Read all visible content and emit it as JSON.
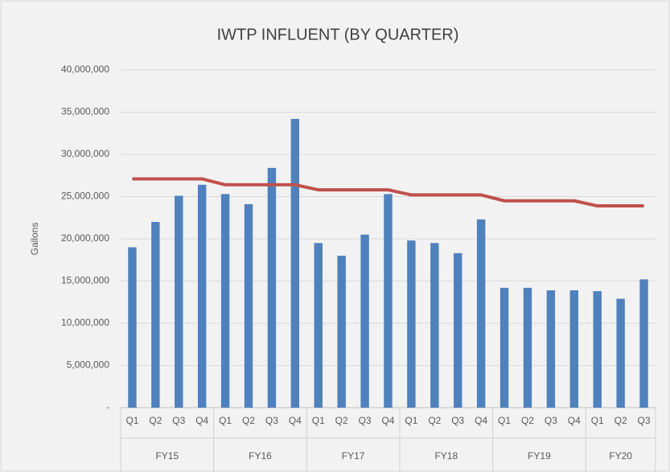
{
  "chart_data": {
    "type": "bar",
    "title": "IWTP INFLUENT (BY QUARTER)",
    "y_label": "Gallons",
    "groups": [
      {
        "name": "FY15",
        "categories": [
          "Q1",
          "Q2",
          "Q3",
          "Q4"
        ]
      },
      {
        "name": "FY16",
        "categories": [
          "Q1",
          "Q2",
          "Q3",
          "Q4"
        ]
      },
      {
        "name": "FY17",
        "categories": [
          "Q1",
          "Q2",
          "Q3",
          "Q4"
        ]
      },
      {
        "name": "FY18",
        "categories": [
          "Q1",
          "Q2",
          "Q3",
          "Q4"
        ]
      },
      {
        "name": "FY19",
        "categories": [
          "Q1",
          "Q2",
          "Q3",
          "Q4"
        ]
      },
      {
        "name": "FY20",
        "categories": [
          "Q1",
          "Q2",
          "Q3"
        ]
      }
    ],
    "series": [
      {
        "type": "bar",
        "color": "#4f81bd",
        "values": [
          19000000,
          22000000,
          25100000,
          26400000,
          25300000,
          24100000,
          28400000,
          34200000,
          19500000,
          18000000,
          20500000,
          25300000,
          19800000,
          19500000,
          18300000,
          22300000,
          14200000,
          14200000,
          13900000,
          13900000,
          13800000,
          12900000,
          15200000
        ]
      },
      {
        "type": "line",
        "color": "#c0504d",
        "values": [
          27100000,
          27100000,
          27100000,
          27100000,
          26400000,
          26400000,
          26400000,
          26400000,
          25800000,
          25800000,
          25800000,
          25800000,
          25200000,
          25200000,
          25200000,
          25200000,
          24500000,
          24500000,
          24500000,
          24500000,
          23900000,
          23900000,
          23900000
        ]
      }
    ],
    "ylim": [
      0,
      40000000
    ],
    "yticks": [
      {
        "value": 0,
        "label": "-"
      },
      {
        "value": 5000000,
        "label": "5,000,000"
      },
      {
        "value": 10000000,
        "label": "10,000,000"
      },
      {
        "value": 15000000,
        "label": "15,000,000"
      },
      {
        "value": 20000000,
        "label": "20,000,000"
      },
      {
        "value": 25000000,
        "label": "25,000,000"
      },
      {
        "value": 30000000,
        "label": "30,000,000"
      },
      {
        "value": 35000000,
        "label": "35,000,000"
      },
      {
        "value": 40000000,
        "label": "40,000,000"
      }
    ],
    "grid": true
  }
}
